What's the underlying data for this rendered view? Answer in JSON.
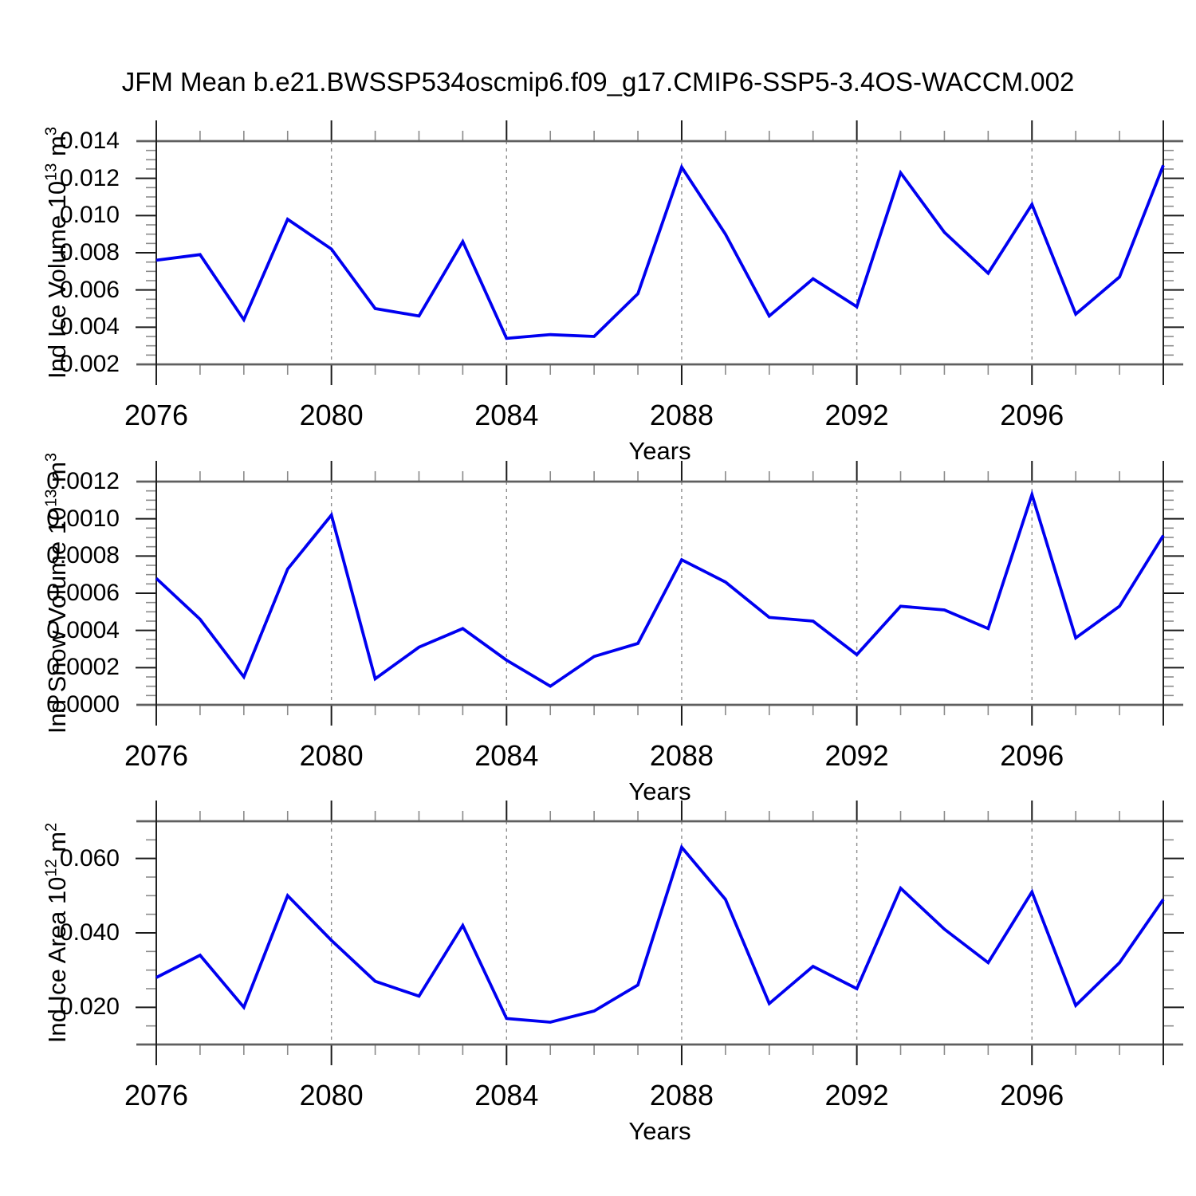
{
  "title": "JFM Mean b.e21.BWSSP534oscmip6.f09_g17.CMIP6-SSP5-3.4OS-WACCM.002",
  "xlabel": "Years",
  "x_axis": {
    "start_year": 2076,
    "end_year": 2099,
    "major_tick_years": [
      2076,
      2080,
      2084,
      2088,
      2092,
      2096
    ],
    "major_tick_labels": [
      "2076",
      "2080",
      "2084",
      "2088",
      "2092",
      "2096"
    ],
    "minor_tick_step_years": 1,
    "dashed_gridline_years": [
      2080,
      2084,
      2088,
      2092,
      2096
    ]
  },
  "colors": {
    "line": "#0000F0",
    "frame": "#5f5f5f",
    "axis_edge": "#222222",
    "tick_major": "#1a1a1a",
    "tick_minor": "#8a8a8a",
    "dashed_grid": "#8c8c8c",
    "text": "#000000",
    "background": "#FFFFFF"
  },
  "chart_data": [
    {
      "id": "ice-volume",
      "type": "line",
      "ylabel_parts": [
        {
          "text": "Ind Ice Volume 10",
          "sup": false
        },
        {
          "text": "13",
          "sup": true
        },
        {
          "text": " m",
          "sup": false
        },
        {
          "text": "3",
          "sup": true
        }
      ],
      "xlabel": "Years",
      "x": [
        2076,
        2077,
        2078,
        2079,
        2080,
        2081,
        2082,
        2083,
        2084,
        2085,
        2086,
        2087,
        2088,
        2089,
        2090,
        2091,
        2092,
        2093,
        2094,
        2095,
        2096,
        2097,
        2098,
        2099
      ],
      "values": [
        0.0076,
        0.0079,
        0.0044,
        0.0098,
        0.0082,
        0.005,
        0.0046,
        0.0086,
        0.0034,
        0.0036,
        0.0035,
        0.0058,
        0.0126,
        0.009,
        0.0046,
        0.0066,
        0.0051,
        0.0123,
        0.0091,
        0.0069,
        0.0106,
        0.0047,
        0.0067,
        0.0127
      ],
      "ylim": [
        0.002,
        0.014
      ],
      "ytick_values": [
        0.002,
        0.004,
        0.006,
        0.008,
        0.01,
        0.012,
        0.014
      ],
      "ytick_labels": [
        "0.002",
        "0.004",
        "0.006",
        "0.008",
        "0.010",
        "0.012",
        "0.014"
      ],
      "ytick_minor_step": 0.0005,
      "grid": "vertical-dashed"
    },
    {
      "id": "snow-volume",
      "type": "line",
      "ylabel_parts": [
        {
          "text": "Ind Snow Volume 10",
          "sup": false
        },
        {
          "text": "13",
          "sup": true
        },
        {
          "text": " m",
          "sup": false
        },
        {
          "text": "3",
          "sup": true
        }
      ],
      "xlabel": "Years",
      "x": [
        2076,
        2077,
        2078,
        2079,
        2080,
        2081,
        2082,
        2083,
        2084,
        2085,
        2086,
        2087,
        2088,
        2089,
        2090,
        2091,
        2092,
        2093,
        2094,
        2095,
        2096,
        2097,
        2098,
        2099
      ],
      "values": [
        0.00068,
        0.00046,
        0.00015,
        0.00073,
        0.00102,
        0.00014,
        0.00031,
        0.00041,
        0.00024,
        0.0001,
        0.00026,
        0.00033,
        0.00078,
        0.00066,
        0.00047,
        0.00045,
        0.00027,
        0.00053,
        0.00051,
        0.00041,
        0.00113,
        0.00036,
        0.00053,
        0.00091
      ],
      "ylim": [
        0.0,
        0.0012
      ],
      "ytick_values": [
        0.0,
        0.0002,
        0.0004,
        0.0006,
        0.0008,
        0.001,
        0.0012
      ],
      "ytick_labels": [
        "0.0000",
        "0.0002",
        "0.0004",
        "0.0006",
        "0.0008",
        "0.0010",
        "0.0012"
      ],
      "ytick_minor_step": 5e-05,
      "grid": "vertical-dashed"
    },
    {
      "id": "ice-area",
      "type": "line",
      "ylabel_parts": [
        {
          "text": "Ind Ice Area 10",
          "sup": false
        },
        {
          "text": "12",
          "sup": true
        },
        {
          "text": " m",
          "sup": false
        },
        {
          "text": "2",
          "sup": true
        }
      ],
      "xlabel": "Years",
      "x": [
        2076,
        2077,
        2078,
        2079,
        2080,
        2081,
        2082,
        2083,
        2084,
        2085,
        2086,
        2087,
        2088,
        2089,
        2090,
        2091,
        2092,
        2093,
        2094,
        2095,
        2096,
        2097,
        2098,
        2099
      ],
      "values": [
        0.028,
        0.034,
        0.02,
        0.05,
        0.038,
        0.027,
        0.023,
        0.042,
        0.017,
        0.016,
        0.019,
        0.026,
        0.063,
        0.049,
        0.021,
        0.031,
        0.025,
        0.052,
        0.041,
        0.032,
        0.051,
        0.0205,
        0.032,
        0.049
      ],
      "ylim": [
        0.01,
        0.07
      ],
      "ytick_values": [
        0.02,
        0.04,
        0.06
      ],
      "ytick_labels": [
        "0.020",
        "0.040",
        "0.060"
      ],
      "ytick_minor_step": 0.005,
      "grid": "vertical-dashed"
    }
  ]
}
